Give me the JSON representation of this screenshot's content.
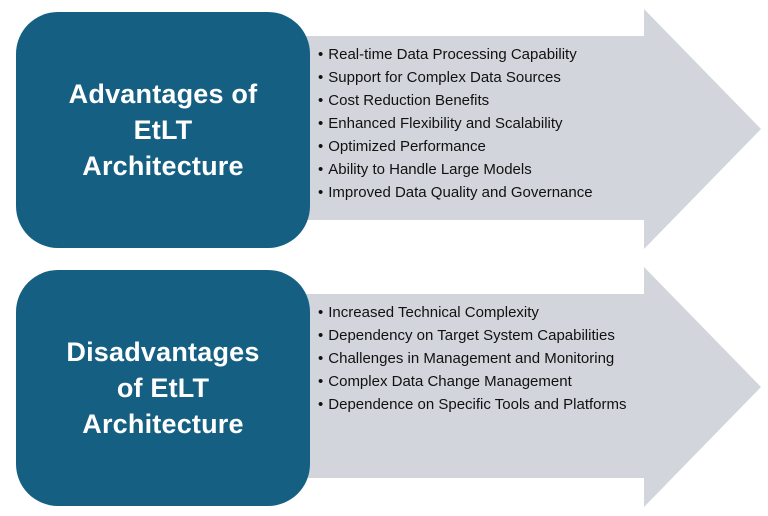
{
  "diagram": {
    "colors": {
      "background": "#FFFFFF",
      "box": "#156082",
      "arrow": "#D2D5DB",
      "title_text": "#FFFFFF",
      "bullet_text": "#111111"
    },
    "rows": [
      {
        "title": "Advantages of EtLT Architecture",
        "title_lines": [
          "Advantages of",
          "EtLT",
          "Architecture"
        ],
        "bullets": [
          "Real-time Data Processing Capability",
          "Support for Complex Data Sources",
          "Cost Reduction Benefits",
          "Enhanced Flexibility and Scalability",
          "Optimized Performance",
          "Ability to Handle Large Models",
          "Improved Data Quality and Governance"
        ]
      },
      {
        "title": "Disadvantages of EtLT Architecture",
        "title_lines": [
          "Disadvantages",
          "of EtLT",
          "Architecture"
        ],
        "bullets": [
          "Increased Technical Complexity",
          "Dependency on Target System Capabilities",
          "Challenges in Management and Monitoring",
          "Complex Data Change Management",
          "Dependence on Specific Tools and Platforms"
        ]
      }
    ]
  }
}
